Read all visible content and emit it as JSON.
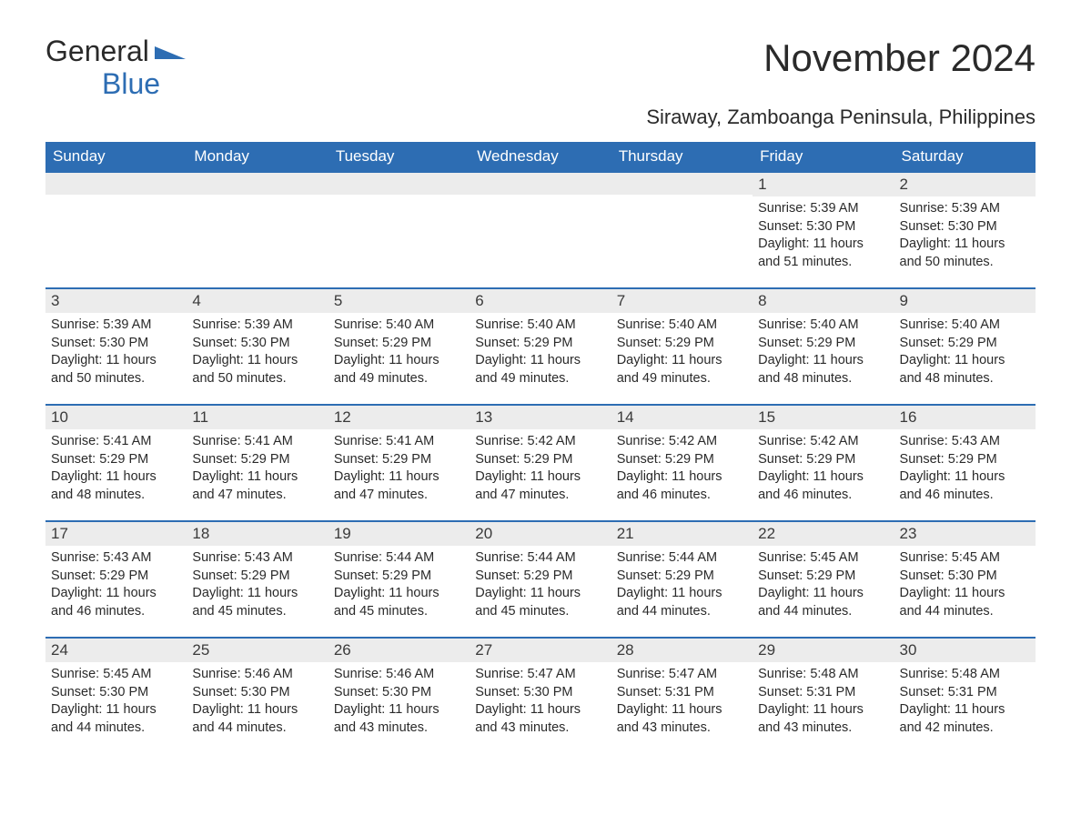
{
  "logo": {
    "text1": "General",
    "text2": "Blue"
  },
  "title": "November 2024",
  "subtitle": "Siraway, Zamboanga Peninsula, Philippines",
  "colors": {
    "header_bg": "#2d6db3",
    "header_text": "#ffffff",
    "daynum_bg": "#ececec",
    "border_top": "#2d6db3",
    "body_text": "#2a2a2a",
    "page_bg": "#ffffff"
  },
  "typography": {
    "title_fontsize": 42,
    "subtitle_fontsize": 22,
    "header_fontsize": 17,
    "daynum_fontsize": 17,
    "body_fontsize": 14.5
  },
  "layout": {
    "columns": 7,
    "rows": 5,
    "leading_blanks": 5
  },
  "weekdays": [
    "Sunday",
    "Monday",
    "Tuesday",
    "Wednesday",
    "Thursday",
    "Friday",
    "Saturday"
  ],
  "days": [
    {
      "n": 1,
      "sunrise": "5:39 AM",
      "sunset": "5:30 PM",
      "daylight": "11 hours and 51 minutes."
    },
    {
      "n": 2,
      "sunrise": "5:39 AM",
      "sunset": "5:30 PM",
      "daylight": "11 hours and 50 minutes."
    },
    {
      "n": 3,
      "sunrise": "5:39 AM",
      "sunset": "5:30 PM",
      "daylight": "11 hours and 50 minutes."
    },
    {
      "n": 4,
      "sunrise": "5:39 AM",
      "sunset": "5:30 PM",
      "daylight": "11 hours and 50 minutes."
    },
    {
      "n": 5,
      "sunrise": "5:40 AM",
      "sunset": "5:29 PM",
      "daylight": "11 hours and 49 minutes."
    },
    {
      "n": 6,
      "sunrise": "5:40 AM",
      "sunset": "5:29 PM",
      "daylight": "11 hours and 49 minutes."
    },
    {
      "n": 7,
      "sunrise": "5:40 AM",
      "sunset": "5:29 PM",
      "daylight": "11 hours and 49 minutes."
    },
    {
      "n": 8,
      "sunrise": "5:40 AM",
      "sunset": "5:29 PM",
      "daylight": "11 hours and 48 minutes."
    },
    {
      "n": 9,
      "sunrise": "5:40 AM",
      "sunset": "5:29 PM",
      "daylight": "11 hours and 48 minutes."
    },
    {
      "n": 10,
      "sunrise": "5:41 AM",
      "sunset": "5:29 PM",
      "daylight": "11 hours and 48 minutes."
    },
    {
      "n": 11,
      "sunrise": "5:41 AM",
      "sunset": "5:29 PM",
      "daylight": "11 hours and 47 minutes."
    },
    {
      "n": 12,
      "sunrise": "5:41 AM",
      "sunset": "5:29 PM",
      "daylight": "11 hours and 47 minutes."
    },
    {
      "n": 13,
      "sunrise": "5:42 AM",
      "sunset": "5:29 PM",
      "daylight": "11 hours and 47 minutes."
    },
    {
      "n": 14,
      "sunrise": "5:42 AM",
      "sunset": "5:29 PM",
      "daylight": "11 hours and 46 minutes."
    },
    {
      "n": 15,
      "sunrise": "5:42 AM",
      "sunset": "5:29 PM",
      "daylight": "11 hours and 46 minutes."
    },
    {
      "n": 16,
      "sunrise": "5:43 AM",
      "sunset": "5:29 PM",
      "daylight": "11 hours and 46 minutes."
    },
    {
      "n": 17,
      "sunrise": "5:43 AM",
      "sunset": "5:29 PM",
      "daylight": "11 hours and 46 minutes."
    },
    {
      "n": 18,
      "sunrise": "5:43 AM",
      "sunset": "5:29 PM",
      "daylight": "11 hours and 45 minutes."
    },
    {
      "n": 19,
      "sunrise": "5:44 AM",
      "sunset": "5:29 PM",
      "daylight": "11 hours and 45 minutes."
    },
    {
      "n": 20,
      "sunrise": "5:44 AM",
      "sunset": "5:29 PM",
      "daylight": "11 hours and 45 minutes."
    },
    {
      "n": 21,
      "sunrise": "5:44 AM",
      "sunset": "5:29 PM",
      "daylight": "11 hours and 44 minutes."
    },
    {
      "n": 22,
      "sunrise": "5:45 AM",
      "sunset": "5:29 PM",
      "daylight": "11 hours and 44 minutes."
    },
    {
      "n": 23,
      "sunrise": "5:45 AM",
      "sunset": "5:30 PM",
      "daylight": "11 hours and 44 minutes."
    },
    {
      "n": 24,
      "sunrise": "5:45 AM",
      "sunset": "5:30 PM",
      "daylight": "11 hours and 44 minutes."
    },
    {
      "n": 25,
      "sunrise": "5:46 AM",
      "sunset": "5:30 PM",
      "daylight": "11 hours and 44 minutes."
    },
    {
      "n": 26,
      "sunrise": "5:46 AM",
      "sunset": "5:30 PM",
      "daylight": "11 hours and 43 minutes."
    },
    {
      "n": 27,
      "sunrise": "5:47 AM",
      "sunset": "5:30 PM",
      "daylight": "11 hours and 43 minutes."
    },
    {
      "n": 28,
      "sunrise": "5:47 AM",
      "sunset": "5:31 PM",
      "daylight": "11 hours and 43 minutes."
    },
    {
      "n": 29,
      "sunrise": "5:48 AM",
      "sunset": "5:31 PM",
      "daylight": "11 hours and 43 minutes."
    },
    {
      "n": 30,
      "sunrise": "5:48 AM",
      "sunset": "5:31 PM",
      "daylight": "11 hours and 42 minutes."
    }
  ],
  "labels": {
    "sunrise": "Sunrise:",
    "sunset": "Sunset:",
    "daylight": "Daylight:"
  }
}
